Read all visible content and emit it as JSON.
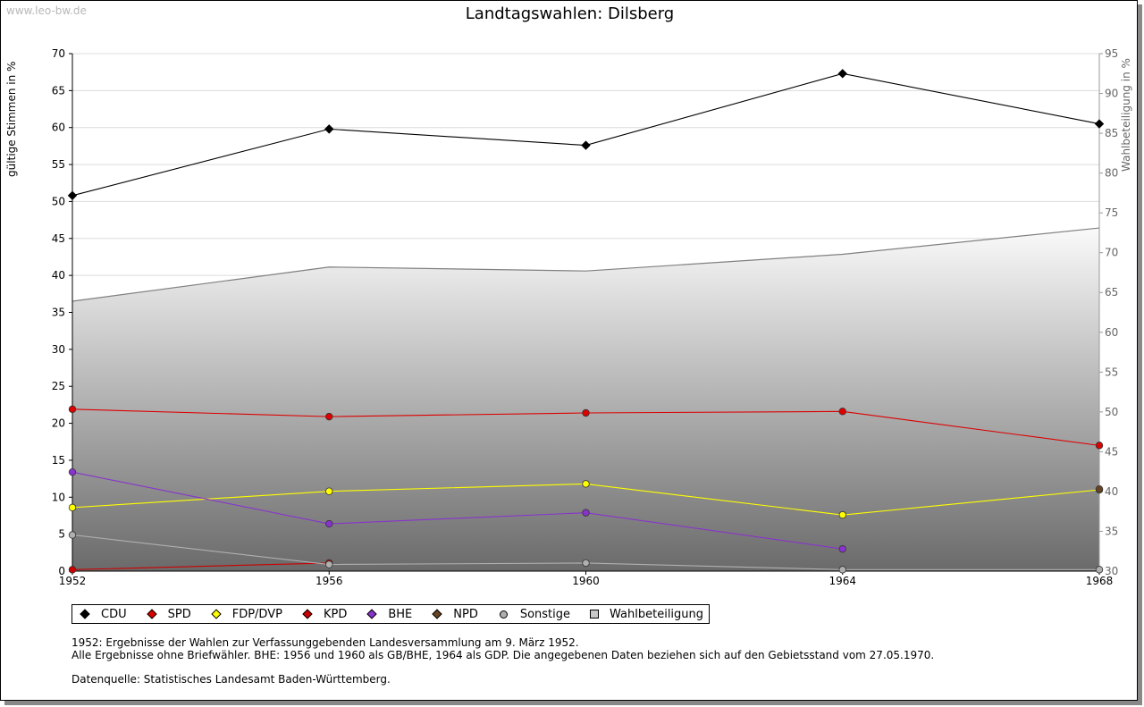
{
  "watermark": "www.leo-bw.de",
  "title": "Landtagswahlen: Dilsberg",
  "chart_data": {
    "type": "line",
    "title": "Landtagswahlen: Dilsberg",
    "x": [
      "1952",
      "1956",
      "1960",
      "1964",
      "1968"
    ],
    "ylabel": "gültige Stimmen in %",
    "y2label": "Wahlbeteiligung in %",
    "ylim": [
      0,
      70
    ],
    "y2lim": [
      30,
      95
    ],
    "yticks": [
      "0",
      "5",
      "10",
      "15",
      "20",
      "25",
      "30",
      "35",
      "40",
      "45",
      "50",
      "55",
      "60",
      "65",
      "70"
    ],
    "y2ticks": [
      "30",
      "35",
      "40",
      "45",
      "50",
      "55",
      "60",
      "65",
      "70",
      "75",
      "80",
      "85",
      "90",
      "95"
    ],
    "grid": true,
    "series": [
      {
        "name": "CDU",
        "color": "#000000",
        "values": [
          50.8,
          59.8,
          57.6,
          67.3,
          60.5
        ]
      },
      {
        "name": "SPD",
        "color": "#dd0000",
        "values": [
          21.9,
          20.9,
          21.4,
          21.6,
          17.0
        ]
      },
      {
        "name": "FDP/DVP",
        "color": "#ffff00",
        "values": [
          8.6,
          10.8,
          11.8,
          7.6,
          11.0
        ]
      },
      {
        "name": "KPD",
        "color": "#cc0000",
        "values": [
          0.2,
          1.1,
          null,
          null,
          null
        ]
      },
      {
        "name": "BHE",
        "color": "#8833cc",
        "values": [
          13.4,
          6.4,
          7.9,
          3.0,
          null
        ]
      },
      {
        "name": "NPD",
        "color": "#664422",
        "values": [
          null,
          null,
          null,
          null,
          11.1
        ]
      },
      {
        "name": "Sonstige",
        "color": "#b0b0b0",
        "values": [
          4.9,
          0.9,
          1.1,
          0.2,
          0.2
        ]
      },
      {
        "name": "Wahlbeteiligung",
        "color": "#808080",
        "axis": "right",
        "type": "area",
        "values": [
          63.9,
          68.2,
          67.7,
          69.8,
          73.1
        ]
      }
    ]
  },
  "legend": {
    "items": [
      {
        "label": "CDU",
        "color": "#000000",
        "marker": "diamond"
      },
      {
        "label": "SPD",
        "color": "#dd0000",
        "marker": "diamond"
      },
      {
        "label": "FDP/DVP",
        "color": "#ffff00",
        "marker": "diamond"
      },
      {
        "label": "KPD",
        "color": "#cc0000",
        "marker": "diamond"
      },
      {
        "label": "BHE",
        "color": "#8833cc",
        "marker": "diamond"
      },
      {
        "label": "NPD",
        "color": "#664422",
        "marker": "diamond"
      },
      {
        "label": "Sonstige",
        "color": "#b0b0b0",
        "marker": "circle"
      },
      {
        "label": "Wahlbeteiligung",
        "color": "#c8c8c8",
        "marker": "square"
      }
    ]
  },
  "notes": {
    "line1": "1952: Ergebnisse der Wahlen zur Verfassunggebenden Landesversammlung am 9. März 1952.",
    "line2": "Alle Ergebnisse ohne Briefwähler. BHE: 1956 und 1960 als GB/BHE, 1964 als GDP. Die angegebenen Daten beziehen sich auf den Gebietsstand vom 27.05.1970.",
    "source": "Datenquelle: Statistisches Landesamt Baden-Württemberg."
  }
}
